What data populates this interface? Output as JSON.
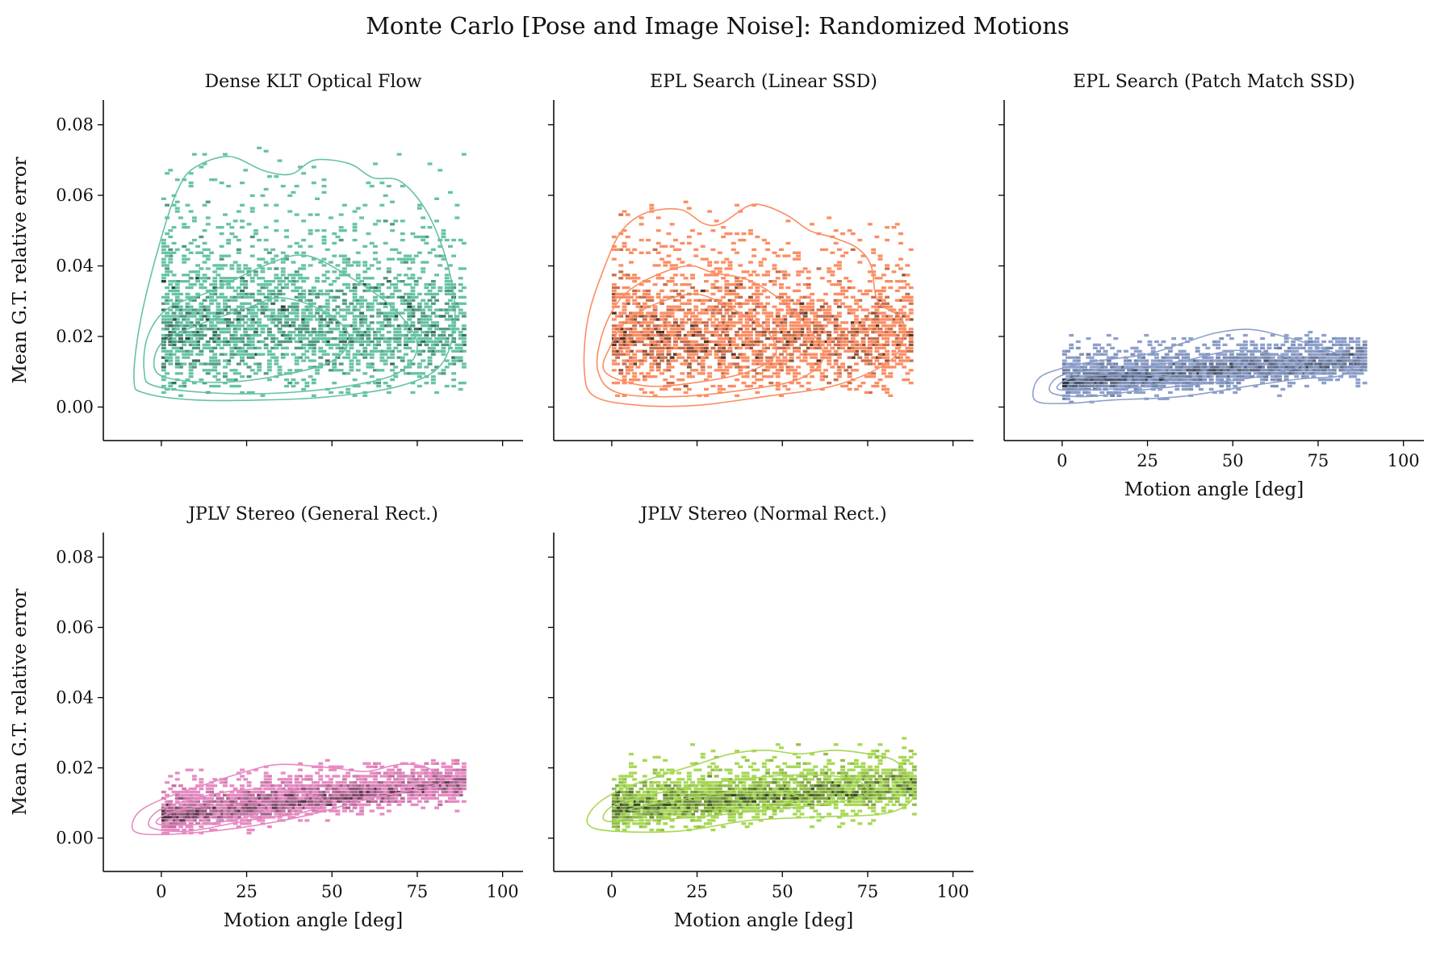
{
  "figure": {
    "title": "Monte Carlo [Pose and Image Noise]: Randomized Motions"
  },
  "chart_data": [
    {
      "type": "heatmap",
      "title": "Dense KLT Optical Flow",
      "color": "#66c2a5",
      "xlabel": "",
      "ylabel": "Mean G.T. relative error",
      "xlim": [
        -17,
        106
      ],
      "ylim": [
        -0.0095,
        0.087
      ],
      "xticks": [
        0,
        25,
        50,
        75,
        100
      ],
      "yticks": [
        "0.00",
        "0.02",
        "0.04",
        "0.06",
        "0.08"
      ],
      "show_xtick_labels": false,
      "show_ytick_labels": true,
      "spread": {
        "x_range": [
          0,
          89
        ],
        "y_range": [
          0.003,
          0.074
        ],
        "center_y": 0.018,
        "y_slope": 0.0,
        "spread_y": 0.022
      },
      "contours": [
        {
          "level": "outer",
          "points": [
            [
              -8,
              0.008
            ],
            [
              -6,
              0.025
            ],
            [
              0,
              0.048
            ],
            [
              5,
              0.062
            ],
            [
              10,
              0.068
            ],
            [
              20,
              0.071
            ],
            [
              30,
              0.067
            ],
            [
              38,
              0.066
            ],
            [
              45,
              0.07
            ],
            [
              55,
              0.069
            ],
            [
              62,
              0.065
            ],
            [
              70,
              0.064
            ],
            [
              78,
              0.055
            ],
            [
              84,
              0.04
            ],
            [
              86,
              0.025
            ],
            [
              82,
              0.012
            ],
            [
              70,
              0.006
            ],
            [
              50,
              0.003
            ],
            [
              30,
              0.002
            ],
            [
              10,
              0.002
            ],
            [
              -5,
              0.004
            ]
          ]
        },
        {
          "level": "middle",
          "points": [
            [
              -5,
              0.01
            ],
            [
              -4,
              0.02
            ],
            [
              2,
              0.028
            ],
            [
              15,
              0.033
            ],
            [
              30,
              0.04
            ],
            [
              42,
              0.043
            ],
            [
              55,
              0.037
            ],
            [
              68,
              0.028
            ],
            [
              75,
              0.018
            ],
            [
              70,
              0.01
            ],
            [
              55,
              0.006
            ],
            [
              35,
              0.004
            ],
            [
              15,
              0.004
            ],
            [
              -2,
              0.006
            ]
          ]
        },
        {
          "level": "inner",
          "points": [
            [
              -2,
              0.011
            ],
            [
              0,
              0.018
            ],
            [
              10,
              0.023
            ],
            [
              25,
              0.028
            ],
            [
              35,
              0.031
            ],
            [
              48,
              0.027
            ],
            [
              55,
              0.02
            ],
            [
              50,
              0.013
            ],
            [
              35,
              0.009
            ],
            [
              18,
              0.007
            ],
            [
              3,
              0.008
            ]
          ]
        }
      ]
    },
    {
      "type": "heatmap",
      "title": "EPL Search (Linear SSD)",
      "color": "#fc8d62",
      "xlabel": "",
      "ylabel": "",
      "xlim": [
        -17,
        106
      ],
      "ylim": [
        -0.0095,
        0.087
      ],
      "xticks": [
        0,
        25,
        50,
        75,
        100
      ],
      "yticks": [
        "0.00",
        "0.02",
        "0.04",
        "0.06",
        "0.08"
      ],
      "show_xtick_labels": false,
      "show_ytick_labels": false,
      "spread": {
        "x_range": [
          0,
          88
        ],
        "y_range": [
          0.003,
          0.058
        ],
        "center_y": 0.016,
        "y_slope": 0.0,
        "spread_y": 0.017
      },
      "contours": [
        {
          "level": "outer",
          "points": [
            [
              -8,
              0.01
            ],
            [
              -7,
              0.025
            ],
            [
              -2,
              0.04
            ],
            [
              3,
              0.05
            ],
            [
              10,
              0.055
            ],
            [
              20,
              0.056
            ],
            [
              27,
              0.052
            ],
            [
              32,
              0.052
            ],
            [
              40,
              0.057
            ],
            [
              45,
              0.057
            ],
            [
              52,
              0.054
            ],
            [
              58,
              0.05
            ],
            [
              65,
              0.048
            ],
            [
              72,
              0.045
            ],
            [
              76,
              0.04
            ],
            [
              78,
              0.03
            ],
            [
              85,
              0.025
            ],
            [
              85,
              0.018
            ],
            [
              80,
              0.012
            ],
            [
              65,
              0.006
            ],
            [
              45,
              0.003
            ],
            [
              25,
              0.0005
            ],
            [
              8,
              0.0005
            ],
            [
              -5,
              0.003
            ]
          ]
        },
        {
          "level": "middle",
          "points": [
            [
              -4,
              0.01
            ],
            [
              -3,
              0.02
            ],
            [
              2,
              0.03
            ],
            [
              10,
              0.036
            ],
            [
              22,
              0.04
            ],
            [
              30,
              0.038
            ],
            [
              40,
              0.036
            ],
            [
              50,
              0.03
            ],
            [
              58,
              0.022
            ],
            [
              62,
              0.014
            ],
            [
              55,
              0.008
            ],
            [
              40,
              0.005
            ],
            [
              20,
              0.003
            ],
            [
              2,
              0.004
            ]
          ]
        },
        {
          "level": "inner",
          "points": [
            [
              -2,
              0.01
            ],
            [
              0,
              0.018
            ],
            [
              5,
              0.025
            ],
            [
              15,
              0.03
            ],
            [
              25,
              0.032
            ],
            [
              35,
              0.028
            ],
            [
              45,
              0.022
            ],
            [
              48,
              0.015
            ],
            [
              40,
              0.01
            ],
            [
              25,
              0.007
            ],
            [
              10,
              0.006
            ]
          ]
        }
      ]
    },
    {
      "type": "heatmap",
      "title": "EPL Search (Patch Match SSD)",
      "color": "#8da0cb",
      "xlabel": "Motion angle [deg]",
      "ylabel": "",
      "xlim": [
        -17,
        106
      ],
      "ylim": [
        -0.0095,
        0.087
      ],
      "xticks": [
        0,
        25,
        50,
        75,
        100
      ],
      "yticks": [
        "0.00",
        "0.02",
        "0.04",
        "0.06",
        "0.08"
      ],
      "show_xtick_labels": true,
      "show_ytick_labels": false,
      "spread": {
        "x_range": [
          0,
          89
        ],
        "y_range": [
          0.001,
          0.021
        ],
        "center_y": 0.006,
        "y_slope": 7e-05,
        "spread_y": 0.005
      },
      "contours": [
        {
          "level": "outer",
          "points": [
            [
              -8,
              0.002
            ],
            [
              -7,
              0.008
            ],
            [
              0,
              0.011
            ],
            [
              10,
              0.013
            ],
            [
              25,
              0.015
            ],
            [
              35,
              0.018
            ],
            [
              45,
              0.021
            ],
            [
              55,
              0.022
            ],
            [
              65,
              0.02
            ],
            [
              75,
              0.017
            ],
            [
              85,
              0.013
            ],
            [
              82,
              0.009
            ],
            [
              70,
              0.008
            ],
            [
              55,
              0.006
            ],
            [
              35,
              0.003
            ],
            [
              15,
              0.002
            ],
            [
              0,
              0.001
            ]
          ]
        },
        {
          "level": "middle",
          "points": [
            [
              -3,
              0.004
            ],
            [
              -2,
              0.008
            ],
            [
              5,
              0.01
            ],
            [
              20,
              0.011
            ],
            [
              35,
              0.013
            ],
            [
              50,
              0.016
            ],
            [
              62,
              0.015
            ],
            [
              70,
              0.012
            ],
            [
              60,
              0.009
            ],
            [
              45,
              0.007
            ],
            [
              25,
              0.005
            ],
            [
              8,
              0.003
            ]
          ]
        },
        {
          "level": "inner",
          "points": [
            [
              -1,
              0.005
            ],
            [
              2,
              0.008
            ],
            [
              12,
              0.009
            ],
            [
              25,
              0.009
            ],
            [
              32,
              0.008
            ],
            [
              25,
              0.006
            ],
            [
              12,
              0.005
            ]
          ]
        }
      ]
    },
    {
      "type": "heatmap",
      "title": "JPLV Stereo (General Rect.)",
      "color": "#e78ac3",
      "xlabel": "Motion angle [deg]",
      "ylabel": "Mean G.T. relative error",
      "xlim": [
        -17,
        106
      ],
      "ylim": [
        -0.0095,
        0.087
      ],
      "xticks": [
        0,
        25,
        50,
        75,
        100
      ],
      "yticks": [
        "0.00",
        "0.02",
        "0.04",
        "0.06",
        "0.08"
      ],
      "show_xtick_labels": true,
      "show_ytick_labels": true,
      "spread": {
        "x_range": [
          0,
          89
        ],
        "y_range": [
          0.001,
          0.022
        ],
        "center_y": 0.005,
        "y_slope": 0.00011,
        "spread_y": 0.005
      },
      "contours": [
        {
          "level": "outer",
          "points": [
            [
              -8,
              0.002
            ],
            [
              -7,
              0.007
            ],
            [
              0,
              0.011
            ],
            [
              12,
              0.015
            ],
            [
              25,
              0.019
            ],
            [
              35,
              0.021
            ],
            [
              50,
              0.02
            ],
            [
              60,
              0.019
            ],
            [
              70,
              0.021
            ],
            [
              78,
              0.02
            ],
            [
              82,
              0.016
            ],
            [
              75,
              0.014
            ],
            [
              60,
              0.011
            ],
            [
              45,
              0.007
            ],
            [
              30,
              0.004
            ],
            [
              15,
              0.002
            ],
            [
              0,
              0.001
            ]
          ]
        },
        {
          "level": "middle",
          "points": [
            [
              -3,
              0.003
            ],
            [
              -2,
              0.007
            ],
            [
              5,
              0.01
            ],
            [
              18,
              0.013
            ],
            [
              30,
              0.014
            ],
            [
              42,
              0.013
            ],
            [
              48,
              0.01
            ],
            [
              40,
              0.007
            ],
            [
              25,
              0.005
            ],
            [
              8,
              0.002
            ]
          ]
        },
        {
          "level": "inner",
          "points": [
            [
              -1,
              0.004
            ],
            [
              2,
              0.007
            ],
            [
              12,
              0.009
            ],
            [
              25,
              0.01
            ],
            [
              32,
              0.009
            ],
            [
              25,
              0.006
            ],
            [
              12,
              0.004
            ]
          ]
        }
      ]
    },
    {
      "type": "heatmap",
      "title": "JPLV Stereo (Normal Rect.)",
      "color": "#a6d854",
      "xlabel": "Motion angle [deg]",
      "ylabel": "",
      "xlim": [
        -17,
        106
      ],
      "ylim": [
        -0.0095,
        0.087
      ],
      "xticks": [
        0,
        25,
        50,
        75,
        100
      ],
      "yticks": [
        "0.00",
        "0.02",
        "0.04",
        "0.06",
        "0.08"
      ],
      "show_xtick_labels": true,
      "show_ytick_labels": false,
      "spread": {
        "x_range": [
          0,
          89
        ],
        "y_range": [
          0.002,
          0.028
        ],
        "center_y": 0.007,
        "y_slope": 7e-05,
        "spread_y": 0.006
      },
      "contours": [
        {
          "level": "outer",
          "points": [
            [
              -7,
              0.004
            ],
            [
              -5,
              0.009
            ],
            [
              3,
              0.014
            ],
            [
              15,
              0.018
            ],
            [
              25,
              0.021
            ],
            [
              35,
              0.024
            ],
            [
              45,
              0.025
            ],
            [
              55,
              0.024
            ],
            [
              65,
              0.025
            ],
            [
              75,
              0.024
            ],
            [
              83,
              0.022
            ],
            [
              87,
              0.017
            ],
            [
              88,
              0.011
            ],
            [
              80,
              0.007
            ],
            [
              60,
              0.006
            ],
            [
              40,
              0.005
            ],
            [
              20,
              0.002
            ],
            [
              0,
              0.002
            ]
          ]
        },
        {
          "level": "middle",
          "points": [
            [
              -2,
              0.005
            ],
            [
              0,
              0.009
            ],
            [
              10,
              0.012
            ],
            [
              25,
              0.015
            ],
            [
              40,
              0.017
            ],
            [
              55,
              0.018
            ],
            [
              70,
              0.017
            ],
            [
              75,
              0.013
            ],
            [
              65,
              0.01
            ],
            [
              45,
              0.008
            ],
            [
              25,
              0.006
            ],
            [
              8,
              0.005
            ]
          ]
        },
        {
          "level": "inner",
          "points": [
            [
              5,
              0.008
            ],
            [
              20,
              0.011
            ],
            [
              35,
              0.013
            ],
            [
              50,
              0.013
            ],
            [
              55,
              0.011
            ],
            [
              45,
              0.009
            ],
            [
              25,
              0.008
            ]
          ]
        }
      ]
    }
  ]
}
